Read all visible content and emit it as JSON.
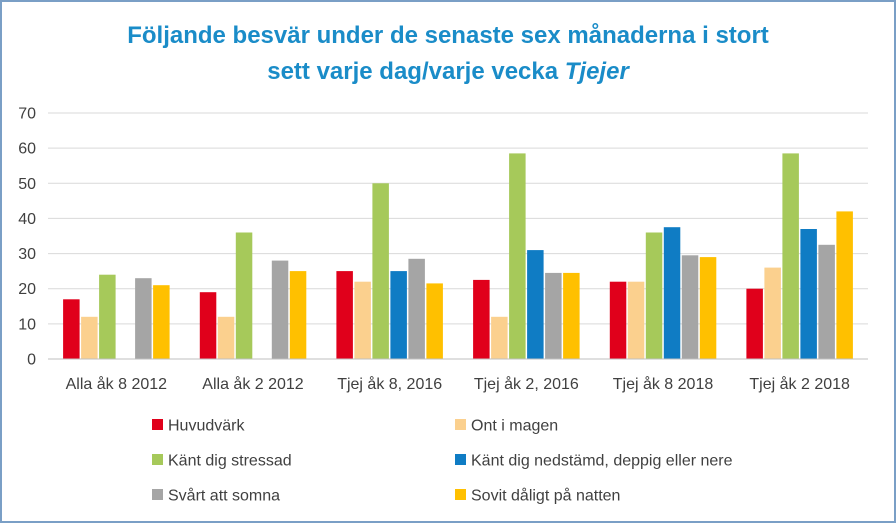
{
  "title": {
    "line1": "Följande besvär under de senaste sex månaderna i stort",
    "line2_main": "sett varje dag/varje vecka",
    "line2_italic": "Tjejer"
  },
  "chart_data": {
    "type": "bar",
    "categories": [
      "Alla åk 8 2012",
      "Alla åk 2 2012",
      "Tjej åk 8, 2016",
      "Tjej åk 2, 2016",
      "Tjej åk 8 2018",
      "Tjej åk 2 2018"
    ],
    "ylim": [
      0,
      70
    ],
    "yticks": [
      0,
      10,
      20,
      30,
      40,
      50,
      60,
      70
    ],
    "grid": true,
    "legend_position": "bottom",
    "series": [
      {
        "name": "Huvudvärk",
        "color": "#e0001b",
        "values": [
          17,
          19,
          25,
          22.5,
          22,
          20
        ]
      },
      {
        "name": "Ont i magen",
        "color": "#fbd08e",
        "values": [
          12,
          12,
          22,
          12,
          22,
          26
        ]
      },
      {
        "name": "Känt dig stressad",
        "color": "#a6c95a",
        "values": [
          24,
          36,
          50,
          58.5,
          36,
          58.5
        ]
      },
      {
        "name": "Känt dig nedstämd, deppig eller nere",
        "color": "#0f7cc4",
        "values": [
          null,
          null,
          25,
          31,
          37.5,
          37
        ]
      },
      {
        "name": "Svårt att somna",
        "color": "#a5a5a5",
        "values": [
          23,
          28,
          28.5,
          24.5,
          29.5,
          32.5
        ]
      },
      {
        "name": "Sovit dåligt på natten",
        "color": "#ffc000",
        "values": [
          21,
          25,
          21.5,
          24.5,
          29,
          42
        ]
      }
    ]
  }
}
